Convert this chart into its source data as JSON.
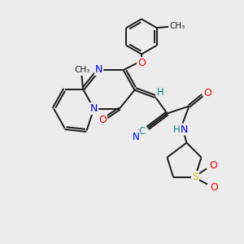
{
  "background_color": "#ececec",
  "bond_color": "#1a1a1a",
  "N_color": "#0000ff",
  "O_color": "#ff0000",
  "S_color": "#cccc00",
  "H_color": "#008080",
  "C_color": "#008080",
  "lw": 1.4,
  "xlim": [
    0,
    10
  ],
  "ylim": [
    0,
    10
  ]
}
